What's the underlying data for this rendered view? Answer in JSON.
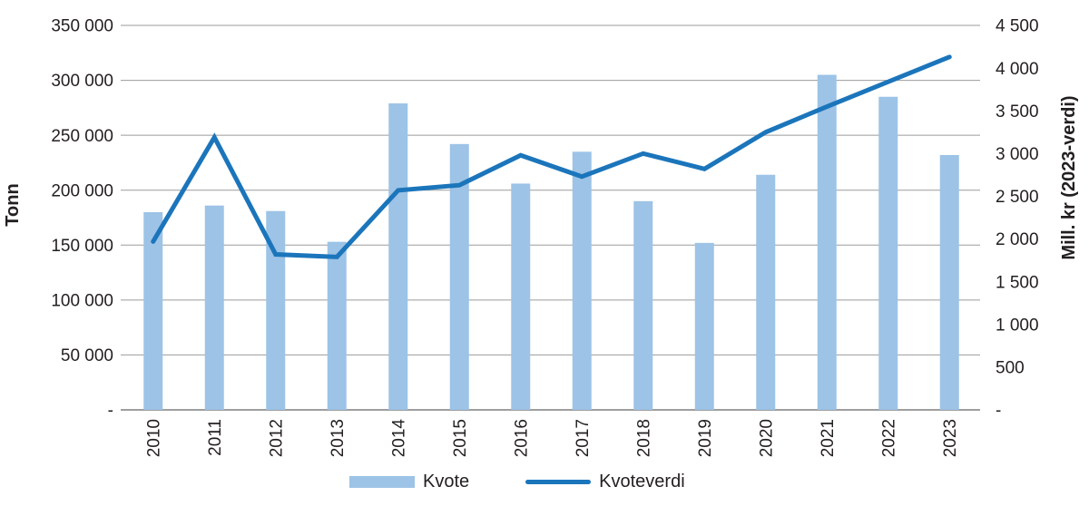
{
  "chart_data": {
    "type": "bar+line combo",
    "title": "",
    "categories": [
      "2010",
      "2011",
      "2012",
      "2013",
      "2014",
      "2015",
      "2016",
      "2017",
      "2018",
      "2019",
      "2020",
      "2021",
      "2022",
      "2023"
    ],
    "series": [
      {
        "name": "Kvote",
        "type": "bar",
        "axis": "left",
        "unit": "Tonn",
        "color": "#9DC3E6",
        "values": [
          180000,
          186000,
          181000,
          153000,
          279000,
          242000,
          206000,
          235000,
          190000,
          152000,
          214000,
          305000,
          285000,
          232000
        ]
      },
      {
        "name": "Kvoteverdi",
        "type": "line",
        "axis": "right",
        "unit": "Mill. kr (2023-verdi)",
        "color": "#1B75BB",
        "values": [
          1970,
          3190,
          1820,
          1790,
          2570,
          2630,
          2980,
          2730,
          3000,
          2820,
          3250,
          3550,
          3840,
          4130
        ]
      }
    ],
    "left_axis": {
      "title": "Tonn",
      "min": 0,
      "max": 350000,
      "tick_values": [
        350000,
        300000,
        250000,
        200000,
        150000,
        100000,
        50000,
        0
      ],
      "tick_labels": [
        "350 000",
        "300 000",
        "250 000",
        "200 000",
        "150 000",
        "100 000",
        "50 000",
        "-"
      ]
    },
    "right_axis": {
      "title": "Mill. kr (2023-verdi)",
      "min": 0,
      "max": 4500,
      "tick_values": [
        4500,
        4000,
        3500,
        3000,
        2500,
        2000,
        1500,
        1000,
        500,
        0
      ],
      "tick_labels": [
        "4 500",
        "4 000",
        "3 500",
        "3 000",
        "2 500",
        "2 000",
        "1 500",
        "1 000",
        "500",
        "-"
      ]
    },
    "legend": {
      "position": "bottom",
      "entries": [
        "Kvote",
        "Kvoteverdi"
      ]
    },
    "grid": true,
    "colors": {
      "bar": "#9DC3E6",
      "line": "#1B75BB",
      "gridline": "#9B9B9B",
      "axis_line": "#7F7F7F",
      "text": "#231F20"
    }
  }
}
